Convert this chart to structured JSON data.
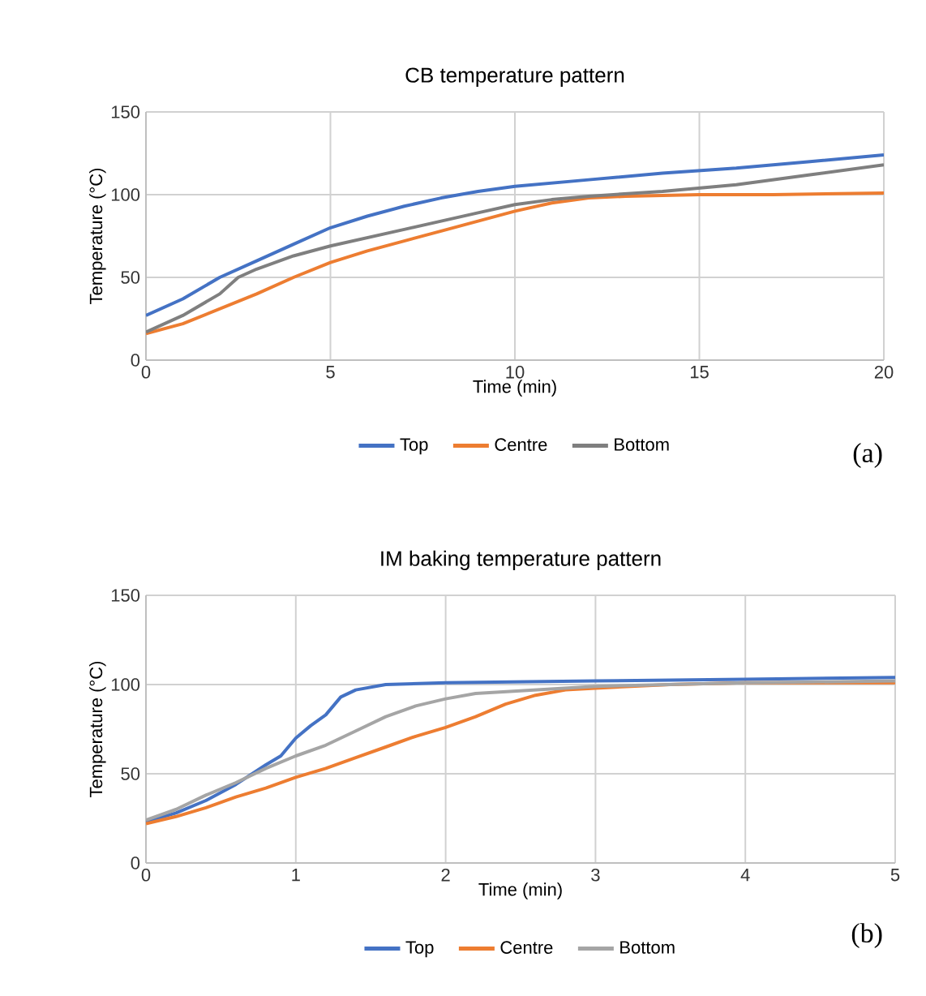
{
  "chart_data": [
    {
      "type": "line",
      "title": "CB temperature pattern",
      "xlabel": "Time (min)",
      "ylabel": "Temperature (°C)",
      "annotations": [
        "(a)"
      ],
      "xlim": [
        0,
        20
      ],
      "xticks": [
        0,
        5,
        10,
        15,
        20
      ],
      "ylim": [
        0,
        150
      ],
      "yticks": [
        0,
        50,
        100,
        150
      ],
      "grid": true,
      "legend": "bottom",
      "marker": "none",
      "line_style": "solid",
      "series": [
        {
          "name": "Top",
          "color": "#4472c4",
          "x": [
            0,
            1,
            2,
            3,
            4,
            5,
            6,
            7,
            8,
            9,
            10,
            12,
            14,
            16,
            18,
            20
          ],
          "values": [
            27,
            37,
            50,
            60,
            70,
            80,
            87,
            93,
            98,
            102,
            105,
            109,
            113,
            116,
            120,
            124
          ]
        },
        {
          "name": "Centre",
          "color": "#ed7d31",
          "x": [
            0,
            1,
            2,
            3,
            4,
            5,
            6,
            7,
            8,
            9,
            10,
            11,
            12,
            13,
            15,
            17,
            20
          ],
          "values": [
            16,
            22,
            31,
            40,
            50,
            59,
            66,
            72,
            78,
            84,
            90,
            95,
            98,
            99,
            100,
            100,
            101
          ]
        },
        {
          "name": "Bottom",
          "color": "#7f7f7f",
          "x": [
            0,
            1,
            2,
            2.5,
            3,
            4,
            5,
            6,
            7,
            8,
            9,
            10,
            11,
            12,
            14,
            16,
            18,
            20
          ],
          "values": [
            17,
            27,
            40,
            50,
            55,
            63,
            69,
            74,
            79,
            84,
            89,
            94,
            97,
            99,
            102,
            106,
            112,
            118
          ]
        }
      ]
    },
    {
      "type": "line",
      "title": "IM baking temperature pattern",
      "xlabel": "Time (min)",
      "ylabel": "Temperature (°C)",
      "annotations": [
        "(b)"
      ],
      "xlim": [
        0,
        5
      ],
      "xticks": [
        0,
        1,
        2,
        3,
        4,
        5
      ],
      "ylim": [
        0,
        150
      ],
      "yticks": [
        0,
        50,
        100,
        150
      ],
      "grid": true,
      "legend": "bottom",
      "marker": "none",
      "line_style": "solid",
      "series": [
        {
          "name": "Top",
          "color": "#4472c4",
          "x": [
            0,
            0.2,
            0.4,
            0.6,
            0.8,
            0.9,
            1.0,
            1.1,
            1.2,
            1.3,
            1.4,
            1.6,
            2,
            3,
            4,
            5
          ],
          "values": [
            23,
            28,
            35,
            44,
            55,
            60,
            70,
            77,
            83,
            93,
            97,
            100,
            101,
            102,
            103,
            104
          ]
        },
        {
          "name": "Centre",
          "color": "#ed7d31",
          "x": [
            0,
            0.2,
            0.4,
            0.6,
            0.8,
            1.0,
            1.2,
            1.4,
            1.6,
            1.8,
            2.0,
            2.2,
            2.4,
            2.6,
            2.8,
            3.0,
            3.5,
            4,
            5
          ],
          "values": [
            22,
            26,
            31,
            37,
            42,
            48,
            53,
            59,
            65,
            71,
            76,
            82,
            89,
            94,
            97,
            98,
            100,
            101,
            101
          ]
        },
        {
          "name": "Bottom",
          "color": "#a5a5a5",
          "x": [
            0,
            0.2,
            0.4,
            0.6,
            0.8,
            1.0,
            1.2,
            1.4,
            1.6,
            1.8,
            2.0,
            2.2,
            2.6,
            3.0,
            4,
            5
          ],
          "values": [
            24,
            30,
            38,
            45,
            53,
            60,
            66,
            74,
            82,
            88,
            92,
            95,
            97,
            99,
            101,
            102
          ]
        }
      ]
    }
  ]
}
